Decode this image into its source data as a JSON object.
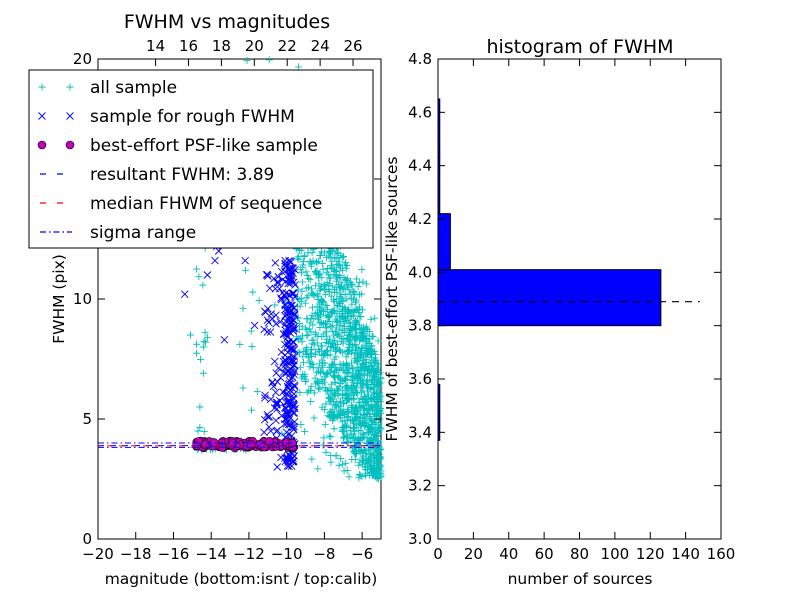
{
  "chart_data": [
    {
      "type": "scatter",
      "title": "FWHM vs magnitudes",
      "xlabel": "magnitude (bottom:isnt / top:calib)",
      "ylabel": "FWHM (pix)",
      "xlim": [
        -20,
        -5
      ],
      "ylim": [
        0,
        20
      ],
      "xticks": [
        -20,
        -18,
        -16,
        -14,
        -12,
        -10,
        -8,
        -6
      ],
      "yticks": [
        0,
        5,
        10,
        15,
        20
      ],
      "ytick_labels": [
        "0",
        "5",
        "10",
        "",
        "20"
      ],
      "top_axis": {
        "lim": [
          10.5,
          27.7
        ],
        "ticks": [
          14,
          16,
          18,
          20,
          22,
          24,
          26
        ]
      },
      "grid": false,
      "legend_position": "upper-left",
      "colors": {
        "all_sample": "#00bfbf",
        "rough": "#0000ff",
        "psf_fill": "#bf00bf",
        "resultant": "#0000ff",
        "median": "#ff0000",
        "sigma": "#0000ff"
      },
      "series": [
        {
          "name": "all sample",
          "marker": "+",
          "clusters": [
            {
              "x": [
                -9.5,
                -5.0
              ],
              "y": [
                2.5,
                20.0
              ],
              "n": 1500,
              "shape": "declining"
            },
            {
              "x": [
                -15.0,
                -12.0
              ],
              "y": [
                3.7,
                4.1
              ],
              "n": 60,
              "shape": "band"
            },
            {
              "x": [
                -14.8,
                -14.3
              ],
              "y": [
                4.0,
                13.0
              ],
              "n": 14,
              "shape": "band"
            },
            {
              "x": [
                -12.5,
                -9.6
              ],
              "y": [
                4.0,
                20.0
              ],
              "n": 40,
              "shape": "band"
            }
          ],
          "points": [
            {
              "x": -14.4,
              "y": 8.0
            },
            {
              "x": -14.3,
              "y": 8.2
            },
            {
              "x": -14.2,
              "y": 8.4
            },
            {
              "x": -14.7,
              "y": 4.5
            },
            {
              "x": -14.6,
              "y": 5.5
            },
            {
              "x": -15.1,
              "y": 8.5
            }
          ]
        },
        {
          "name": "sample for rough FWHM",
          "marker": "x",
          "clusters": [
            {
              "x": [
                -10.1,
                -9.55
              ],
              "y": [
                3.0,
                11.6
              ],
              "n": 220,
              "shape": "band"
            },
            {
              "x": [
                -11.2,
                -10.1
              ],
              "y": [
                3.9,
                11.6
              ],
              "n": 70,
              "shape": "band"
            }
          ],
          "points": [
            {
              "x": -15.4,
              "y": 10.2
            },
            {
              "x": -14.2,
              "y": 11.0
            },
            {
              "x": -13.8,
              "y": 11.6
            },
            {
              "x": -13.7,
              "y": 12.2
            },
            {
              "x": -13.6,
              "y": 12.0
            },
            {
              "x": -13.3,
              "y": 8.3
            },
            {
              "x": -12.2,
              "y": 11.6
            },
            {
              "x": -11.7,
              "y": 8.9
            },
            {
              "x": -10.5,
              "y": 3.0
            },
            {
              "x": -10.3,
              "y": 3.4
            }
          ]
        },
        {
          "name": "best-effort PSF-like sample",
          "marker": "o",
          "clusters": [
            {
              "x": [
                -14.8,
                -9.6
              ],
              "y": [
                3.8,
                4.08
              ],
              "n": 110,
              "shape": "band"
            }
          ]
        }
      ],
      "lines": [
        {
          "name": "resultant FWHM: 3.89",
          "style": "dashed",
          "y": 3.89
        },
        {
          "name": "median FHWM of sequence",
          "style": "dashed",
          "y": 3.88
        },
        {
          "name": "sigma range",
          "style": "dashdot",
          "y": [
            3.82,
            4.0
          ]
        }
      ],
      "legend": [
        "all sample",
        "sample for rough FWHM",
        "best-effort PSF-like sample",
        "resultant FWHM: 3.89",
        "median FHWM of sequence",
        "sigma range"
      ]
    },
    {
      "type": "bar",
      "orientation": "horizontal",
      "title": "histogram of FWHM",
      "xlabel": "number of sources",
      "ylabel": "FWHM of best-effort PSF-like sources",
      "xlim": [
        0,
        160
      ],
      "ylim": [
        3.0,
        4.8
      ],
      "xticks": [
        0,
        20,
        40,
        60,
        80,
        100,
        120,
        140,
        160
      ],
      "yticks": [
        "3.0",
        "3.2",
        "3.4",
        "3.6",
        "3.8",
        "4.0",
        "4.2",
        "4.4",
        "4.6",
        "4.8"
      ],
      "bar_color": "#0000ff",
      "bins": [
        {
          "from": 3.37,
          "to": 3.58,
          "count": 1
        },
        {
          "from": 3.8,
          "to": 4.01,
          "count": 126
        },
        {
          "from": 4.01,
          "to": 4.22,
          "count": 7
        },
        {
          "from": 4.22,
          "to": 4.43,
          "count": 1
        },
        {
          "from": 4.43,
          "to": 4.65,
          "count": 1
        }
      ],
      "reference_line": {
        "y": 3.89,
        "style": "dashed",
        "x_range": [
          0,
          148
        ]
      }
    }
  ]
}
